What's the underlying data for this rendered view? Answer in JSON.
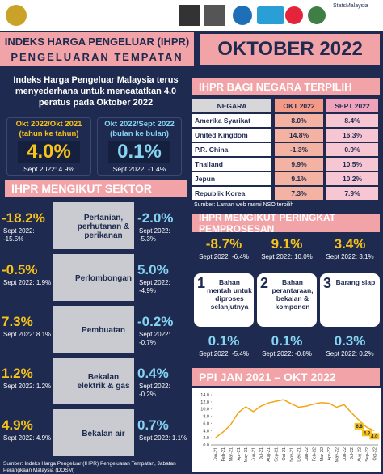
{
  "header": {
    "logo_text": "StatsMalaysia",
    "title_line1": "INDEKS HARGA PENGELUAR (IHPR)",
    "title_line2": "PENGELUARAN TEMPATAN",
    "period": "OKTOBER 2022"
  },
  "summary": {
    "text": "Indeks Harga Pengeluar Malaysia terus menyederhana untuk mencatatkan 4.0 peratus pada Oktober 2022",
    "yoy": {
      "period": "Okt 2022/Okt 2021",
      "basis": "(tahun ke tahun)",
      "value": "4.0%",
      "previous": "Sept 2022: 4.9%"
    },
    "mom": {
      "period": "Okt 2022/Sept 2022",
      "basis": "(bulan ke bulan)",
      "value": "0.1%",
      "previous": "Sept 2022: -1.4%"
    }
  },
  "sectors": {
    "title": "IHPR MENGIKUT SEKTOR",
    "rows": [
      {
        "name": "Pertanian, perhutanan & perikanan",
        "yoy": "-18.2%",
        "yoy_prev": "Sept 2022: -15.5%",
        "mom": "-2.0%",
        "mom_prev": "Sept 2022: -5.3%"
      },
      {
        "name": "Perlombongan",
        "yoy": "-0.5%",
        "yoy_prev": "Sept 2022: 1.9%",
        "mom": "5.0%",
        "mom_prev": "Sept 2022: -4.9%"
      },
      {
        "name": "Pembuatan",
        "yoy": "7.3%",
        "yoy_prev": "Sept 2022: 8.1%",
        "mom": "-0.2%",
        "mom_prev": "Sept 2022: -0.7%"
      },
      {
        "name": "Bekalan elektrik & gas",
        "yoy": "1.2%",
        "yoy_prev": "Sept 2022: 1.2%",
        "mom": "0.4%",
        "mom_prev": "Sept 2022: -0.2%"
      },
      {
        "name": "Bekalan air",
        "yoy": "4.9%",
        "yoy_prev": "Sept 2022: 4.9%",
        "mom": "0.7%",
        "mom_prev": "Sept 2022: 1.1%"
      }
    ]
  },
  "countries": {
    "title": "IHPR BAGI NEGARA TERPILIH",
    "columns": [
      "NEGARA",
      "OKT 2022",
      "SEPT 2022"
    ],
    "rows": [
      [
        "Amerika Syarikat",
        "8.0%",
        "8.4%"
      ],
      [
        "United Kingdom",
        "14.8%",
        "16.3%"
      ],
      [
        "P.R. China",
        "-1.3%",
        "0.9%"
      ],
      [
        "Thailand",
        "9.9%",
        "10.5%"
      ],
      [
        "Jepun",
        "9.1%",
        "10.2%"
      ],
      [
        "Republik Korea",
        "7.3%",
        "7.9%"
      ]
    ],
    "source": "Sumber: Laman web rasmi NSO terpilih"
  },
  "stages": {
    "title": "IHPR MENGIKUT PERINGKAT PEMPROSESAN",
    "items": [
      {
        "number": "1",
        "label": "Bahan mentah untuk diproses selanjutnya",
        "yoy": "-8.7%",
        "yoy_prev": "Sept 2022: -6.4%",
        "mom": "0.1%",
        "mom_prev": "Sept 2022: -5.4%"
      },
      {
        "number": "2",
        "label": "Bahan perantaraan, bekalan & komponen",
        "yoy": "9.1%",
        "yoy_prev": "Sept 2022: 10.0%",
        "mom": "0.1%",
        "mom_prev": "Sept 2022: -0.8%"
      },
      {
        "number": "3",
        "label": "Barang siap",
        "yoy": "3.4%",
        "yoy_prev": "Sept 2022: 3.1%",
        "mom": "0.3%",
        "mom_prev": "Sept 2022: 0.2%"
      }
    ]
  },
  "chart_data": {
    "type": "line",
    "title": "PPI JAN 2021 – OKT 2022",
    "categories": [
      "Jan-21",
      "Feb-21",
      "Mar-21",
      "Apr-21",
      "May-21",
      "Jun-21",
      "Jul-21",
      "Aug-21",
      "Sep-21",
      "Oct-21",
      "Nov-21",
      "Dec-21",
      "Jan-22",
      "Feb-22",
      "Mar-22",
      "Apr-22",
      "May-22",
      "Jun-22",
      "Jul-22",
      "Aug-22",
      "Sep-22",
      "Oct-22"
    ],
    "series": [
      {
        "color": "#f2a515",
        "values": [
          2.0,
          3.6,
          5.6,
          9.0,
          10.6,
          9.3,
          10.8,
          11.7,
          12.2,
          12.6,
          11.5,
          10.5,
          10.8,
          11.4,
          11.8,
          11.6,
          10.5,
          11.2,
          8.9,
          6.8,
          4.9,
          4.0
        ],
        "value_labels": [
          null,
          null,
          null,
          null,
          null,
          null,
          null,
          null,
          null,
          null,
          null,
          null,
          null,
          null,
          null,
          null,
          null,
          null,
          null,
          "6.8",
          "4.9",
          "4.0"
        ]
      }
    ],
    "ylim": [
      0,
      14
    ],
    "yticks": [
      {
        "value": 0,
        "label": "0.0"
      },
      {
        "value": 2,
        "label": "2.0"
      },
      {
        "value": 4,
        "label": "4.0"
      },
      {
        "value": 6,
        "label": "6.0"
      },
      {
        "value": 8,
        "label": "8.0"
      },
      {
        "value": 10,
        "label": "10.0"
      },
      {
        "value": 12,
        "label": "12.0"
      },
      {
        "value": 14,
        "label": "14.0"
      }
    ]
  },
  "footer": {
    "source": "Sumber: Indeks Harga Pengeluar (IHPR) Pengeluaran Tempatan, Jabatan Perangkaan Malaysia (DOSM)"
  }
}
